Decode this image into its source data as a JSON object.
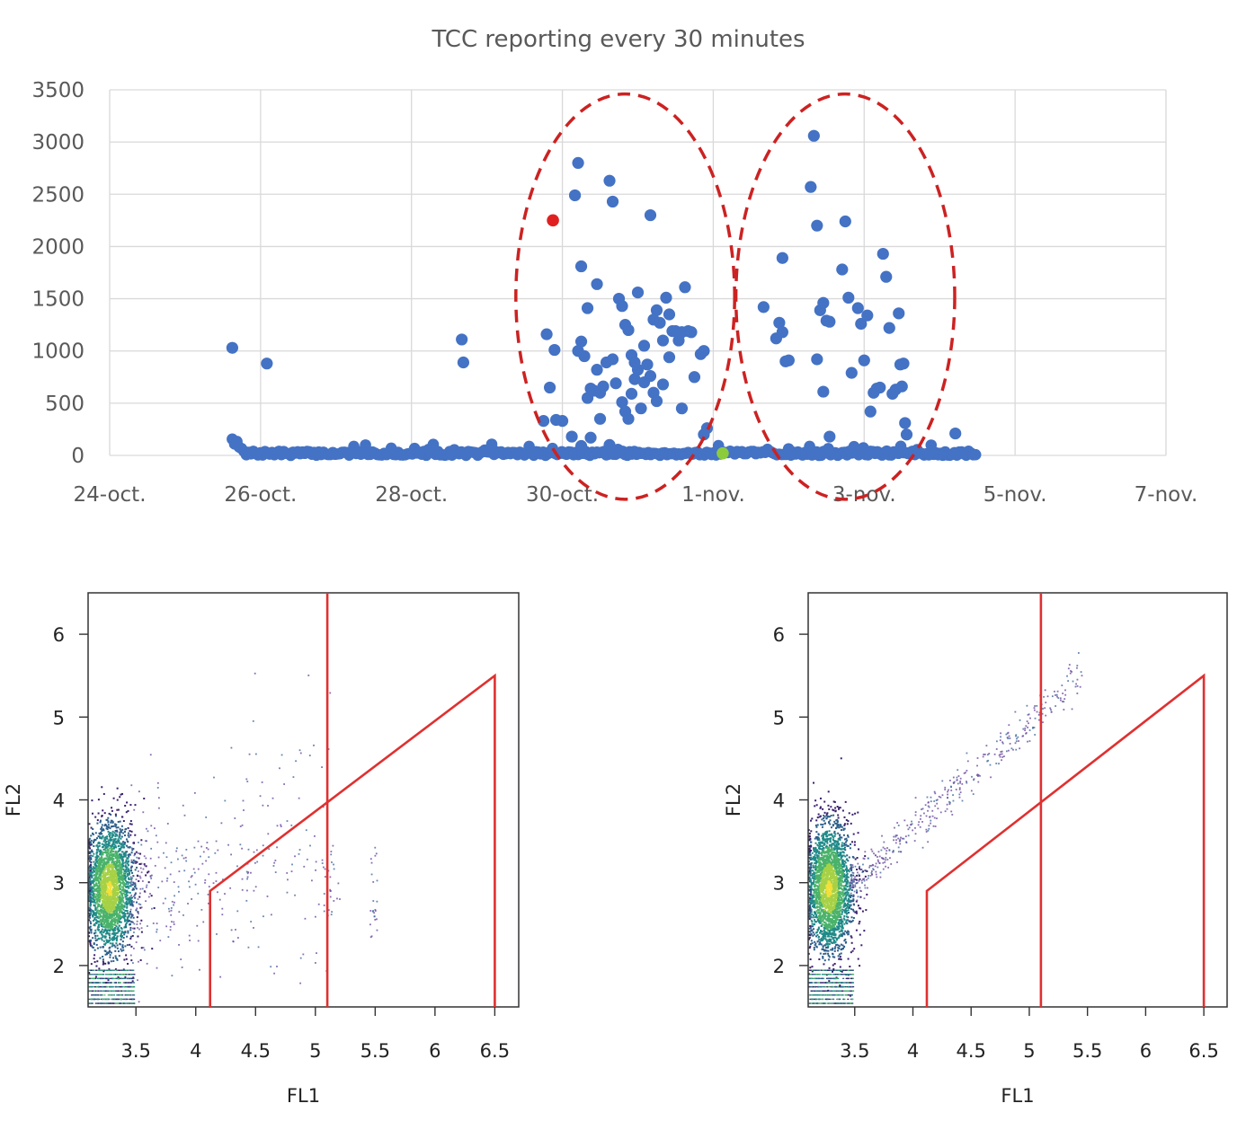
{
  "chart_data": [
    {
      "type": "scatter",
      "title": "TCC reporting every 30 minutes",
      "xlabel": "",
      "ylabel": "",
      "x_ticks": [
        "24-oct.",
        "26-oct.",
        "28-oct.",
        "30-oct.",
        "1-nov.",
        "3-nov.",
        "5-nov.",
        "7-nov."
      ],
      "xlim": [
        "2021-10-24",
        "2021-11-07"
      ],
      "ylim": [
        0,
        3500
      ],
      "y_ticks": [
        0,
        500,
        1000,
        1500,
        2000,
        2500,
        3000,
        3500
      ],
      "grid": true,
      "point_color": "#4472c4",
      "highlight_points": [
        {
          "x": "2021-10-29T21:00",
          "y": 2250,
          "color": "#e02020"
        },
        {
          "x": "2021-11-01T03:00",
          "y": 20,
          "color": "#8ccc3c"
        }
      ],
      "annotations": [
        {
          "shape": "dashed-ellipse",
          "color": "#cc2222",
          "x_center": "2021-10-30T20:00",
          "y_center": 1520,
          "x_radius_days": 1.45,
          "y_radius": 1940
        },
        {
          "shape": "dashed-ellipse",
          "color": "#cc2222",
          "x_center": "2021-11-02T18:00",
          "y_center": 1520,
          "x_radius_days": 1.45,
          "y_radius": 1940
        }
      ],
      "series": [
        {
          "values": [
            [
              "2021-10-25T15:00",
              1030
            ],
            [
              "2021-10-26T02:00",
              880
            ],
            [
              "2021-10-28T16:00",
              1110
            ],
            [
              "2021-10-28T16:30",
              890
            ],
            [
              "2021-10-29T18:00",
              330
            ],
            [
              "2021-10-29T19:00",
              1160
            ],
            [
              "2021-10-29T20:00",
              650
            ],
            [
              "2021-10-29T21:30",
              1010
            ],
            [
              "2021-10-29T22:00",
              340
            ],
            [
              "2021-10-30T00:00",
              330
            ],
            [
              "2021-10-30T05:00",
              2800
            ],
            [
              "2021-10-30T04:00",
              2490
            ],
            [
              "2021-10-30T06:00",
              1810
            ],
            [
              "2021-10-30T08:00",
              1410
            ],
            [
              "2021-10-30T11:00",
              1640
            ],
            [
              "2021-10-30T05:00",
              1000
            ],
            [
              "2021-10-30T06:00",
              1090
            ],
            [
              "2021-10-30T07:00",
              950
            ],
            [
              "2021-10-30T08:00",
              550
            ],
            [
              "2021-10-30T09:00",
              640
            ],
            [
              "2021-10-30T10:00",
              620
            ],
            [
              "2021-10-30T11:00",
              820
            ],
            [
              "2021-10-30T12:00",
              600
            ],
            [
              "2021-10-30T13:00",
              660
            ],
            [
              "2021-10-30T14:00",
              890
            ],
            [
              "2021-10-30T15:00",
              2630
            ],
            [
              "2021-10-30T16:00",
              2430
            ],
            [
              "2021-10-30T16:00",
              920
            ],
            [
              "2021-10-30T17:00",
              690
            ],
            [
              "2021-10-30T18:00",
              1500
            ],
            [
              "2021-10-30T19:00",
              1430
            ],
            [
              "2021-10-30T20:00",
              1250
            ],
            [
              "2021-10-30T21:00",
              1200
            ],
            [
              "2021-10-30T22:00",
              960
            ],
            [
              "2021-10-30T23:00",
              890
            ],
            [
              "2021-10-31T00:00",
              1560
            ],
            [
              "2021-10-31T02:00",
              1050
            ],
            [
              "2021-10-31T04:00",
              2300
            ],
            [
              "2021-10-31T05:00",
              1300
            ],
            [
              "2021-10-31T06:00",
              1390
            ],
            [
              "2021-10-31T07:00",
              1270
            ],
            [
              "2021-10-31T08:00",
              1100
            ],
            [
              "2021-10-31T09:00",
              1510
            ],
            [
              "2021-10-31T10:00",
              1350
            ],
            [
              "2021-10-31T11:00",
              1190
            ],
            [
              "2021-10-31T12:00",
              1190
            ],
            [
              "2021-10-31T13:00",
              1100
            ],
            [
              "2021-10-31T14:00",
              1180
            ],
            [
              "2021-10-31T15:00",
              1610
            ],
            [
              "2021-10-31T16:00",
              1190
            ],
            [
              "2021-10-31T17:00",
              1180
            ],
            [
              "2021-10-31T18:00",
              750
            ],
            [
              "2021-10-31T20:00",
              970
            ],
            [
              "2021-10-31T21:00",
              1000
            ],
            [
              "2021-10-30T19:00",
              510
            ],
            [
              "2021-10-30T20:00",
              420
            ],
            [
              "2021-10-30T21:00",
              350
            ],
            [
              "2021-10-30T22:00",
              590
            ],
            [
              "2021-10-30T23:00",
              730
            ],
            [
              "2021-10-31T00:00",
              820
            ],
            [
              "2021-10-31T01:00",
              450
            ],
            [
              "2021-10-31T02:00",
              700
            ],
            [
              "2021-10-31T03:00",
              870
            ],
            [
              "2021-10-31T04:00",
              760
            ],
            [
              "2021-10-31T05:00",
              600
            ],
            [
              "2021-10-31T06:00",
              520
            ],
            [
              "2021-10-31T08:00",
              680
            ],
            [
              "2021-10-31T10:00",
              940
            ],
            [
              "2021-10-31T14:00",
              450
            ],
            [
              "2021-10-30T03:00",
              180
            ],
            [
              "2021-10-30T06:00",
              90
            ],
            [
              "2021-10-30T09:00",
              170
            ],
            [
              "2021-10-30T12:00",
              350
            ],
            [
              "2021-10-30T15:00",
              100
            ],
            [
              "2021-10-31T21:00",
              200
            ],
            [
              "2021-10-31T22:00",
              260
            ],
            [
              "2021-11-01T16:00",
              1420
            ],
            [
              "2021-11-01T20:00",
              1120
            ],
            [
              "2021-11-01T22:00",
              1180
            ],
            [
              "2021-11-01T21:00",
              1270
            ],
            [
              "2021-11-01T23:00",
              900
            ],
            [
              "2021-11-02T00:00",
              910
            ],
            [
              "2021-11-01T22:00",
              1890
            ],
            [
              "2021-11-02T08:00",
              3060
            ],
            [
              "2021-11-02T07:00",
              2570
            ],
            [
              "2021-11-02T09:00",
              2200
            ],
            [
              "2021-11-02T10:00",
              1390
            ],
            [
              "2021-11-02T11:00",
              1460
            ],
            [
              "2021-11-02T12:00",
              1290
            ],
            [
              "2021-11-02T13:00",
              1280
            ],
            [
              "2021-11-02T09:00",
              920
            ],
            [
              "2021-11-02T11:00",
              610
            ],
            [
              "2021-11-02T18:00",
              2240
            ],
            [
              "2021-11-02T17:00",
              1780
            ],
            [
              "2021-11-02T19:00",
              1510
            ],
            [
              "2021-11-02T22:00",
              1410
            ],
            [
              "2021-11-02T20:00",
              790
            ],
            [
              "2021-11-02T23:00",
              1260
            ],
            [
              "2021-11-03T00:00",
              910
            ],
            [
              "2021-11-03T01:00",
              1340
            ],
            [
              "2021-11-03T02:00",
              420
            ],
            [
              "2021-11-03T03:00",
              600
            ],
            [
              "2021-11-03T04:00",
              640
            ],
            [
              "2021-11-03T05:00",
              650
            ],
            [
              "2021-11-03T06:00",
              1930
            ],
            [
              "2021-11-03T07:00",
              1710
            ],
            [
              "2021-11-03T08:00",
              1220
            ],
            [
              "2021-11-03T09:00",
              590
            ],
            [
              "2021-11-03T10:00",
              630
            ],
            [
              "2021-11-03T11:00",
              1360
            ],
            [
              "2021-11-03T11:30",
              870
            ],
            [
              "2021-11-03T12:00",
              660
            ],
            [
              "2021-11-03T12:30",
              880
            ],
            [
              "2021-11-03T13:00",
              310
            ],
            [
              "2021-11-03T13:30",
              200
            ],
            [
              "2021-11-02T13:00",
              180
            ],
            [
              "2021-11-04T05:00",
              210
            ]
          ]
        }
      ],
      "baseline_cluster": {
        "x_start": "2021-10-25T15:00",
        "x_end": "2021-11-04T12:00",
        "y_range": [
          0,
          100
        ],
        "initial_spike": 180
      }
    },
    {
      "type": "scatter",
      "subtype": "density",
      "xlabel": "FL1",
      "ylabel": "FL2",
      "xlim": [
        3.1,
        6.7
      ],
      "ylim": [
        1.5,
        6.5
      ],
      "x_ticks": [
        "3.5",
        "4",
        "4.5",
        "5",
        "5.5",
        "6",
        "6.5"
      ],
      "y_ticks": [
        "2",
        "3",
        "4",
        "5",
        "6"
      ],
      "gate_color": "#e03030",
      "gate_polygon": [
        [
          4.12,
          1.5
        ],
        [
          4.12,
          2.9
        ],
        [
          6.5,
          5.5
        ],
        [
          6.5,
          1.5
        ]
      ],
      "gate_vline": 5.1,
      "dense_cluster": {
        "x_center": 3.28,
        "y_center": 2.93,
        "x_spread": 0.1,
        "y_spread": 0.38
      },
      "sparse_tail": {
        "x_range": [
          3.4,
          5.5
        ],
        "y_range": [
          1.6,
          5.2
        ],
        "shape": "diffuse"
      }
    },
    {
      "type": "scatter",
      "subtype": "density",
      "xlabel": "FL1",
      "ylabel": "FL2",
      "xlim": [
        3.1,
        6.7
      ],
      "ylim": [
        1.5,
        6.5
      ],
      "x_ticks": [
        "3.5",
        "4",
        "4.5",
        "5",
        "5.5",
        "6",
        "6.5"
      ],
      "y_ticks": [
        "2",
        "3",
        "4",
        "5",
        "6"
      ],
      "gate_color": "#e03030",
      "gate_polygon": [
        [
          4.12,
          1.5
        ],
        [
          4.12,
          2.9
        ],
        [
          6.5,
          5.5
        ],
        [
          6.5,
          1.5
        ]
      ],
      "gate_vline": 5.1,
      "dense_cluster": {
        "x_center": 3.28,
        "y_center": 2.93,
        "x_spread": 0.1,
        "y_spread": 0.38
      },
      "sparse_tail": {
        "x_range": [
          3.4,
          5.5
        ],
        "y_range": [
          2.9,
          6.0
        ],
        "shape": "diagonal-band"
      }
    }
  ]
}
